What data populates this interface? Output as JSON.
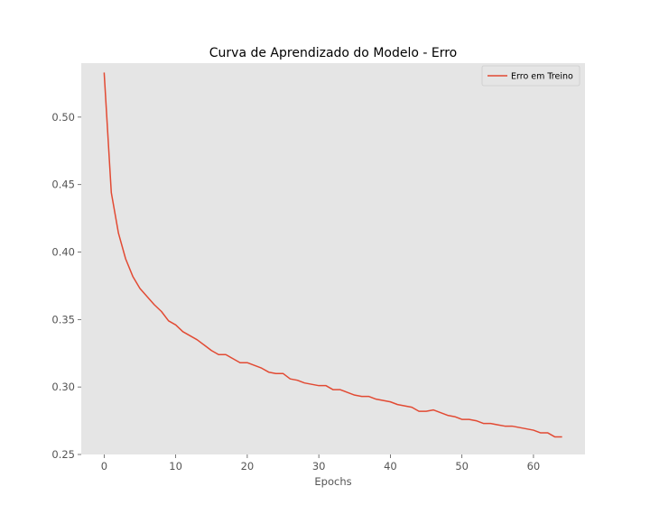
{
  "chart_data": {
    "type": "line",
    "title": "Curva de Aprendizado do Modelo - Erro",
    "xlabel": "Epochs",
    "ylabel": "",
    "xlim": [
      -3.2,
      67.2
    ],
    "ylim": [
      0.25,
      0.54
    ],
    "xticks": [
      0,
      10,
      20,
      30,
      40,
      50,
      60
    ],
    "xtick_labels": [
      "0",
      "10",
      "20",
      "30",
      "40",
      "50",
      "60"
    ],
    "yticks": [
      0.25,
      0.3,
      0.35,
      0.4,
      0.45,
      0.5
    ],
    "ytick_labels": [
      "0.25",
      "0.30",
      "0.35",
      "0.40",
      "0.45",
      "0.50"
    ],
    "grid": false,
    "legend": {
      "position": "top-right"
    },
    "colors": {
      "plot_background": "#e5e5e5",
      "series": "#e24a33",
      "tick_text": "#555555",
      "tick_mark": "#555555",
      "legend_border": "#cccccc"
    },
    "x": [
      0,
      1,
      2,
      3,
      4,
      5,
      6,
      7,
      8,
      9,
      10,
      11,
      12,
      13,
      14,
      15,
      16,
      17,
      18,
      19,
      20,
      21,
      22,
      23,
      24,
      25,
      26,
      27,
      28,
      29,
      30,
      31,
      32,
      33,
      34,
      35,
      36,
      37,
      38,
      39,
      40,
      41,
      42,
      43,
      44,
      45,
      46,
      47,
      48,
      49,
      50,
      51,
      52,
      53,
      54,
      55,
      56,
      57,
      58,
      59,
      60,
      61,
      62,
      63,
      64
    ],
    "series": [
      {
        "name": "Erro em Treino",
        "values": [
          0.533,
          0.444,
          0.414,
          0.395,
          0.382,
          0.373,
          0.367,
          0.361,
          0.356,
          0.349,
          0.346,
          0.341,
          0.338,
          0.335,
          0.331,
          0.327,
          0.324,
          0.324,
          0.321,
          0.318,
          0.318,
          0.316,
          0.314,
          0.311,
          0.31,
          0.31,
          0.306,
          0.305,
          0.303,
          0.302,
          0.301,
          0.301,
          0.298,
          0.298,
          0.296,
          0.294,
          0.293,
          0.293,
          0.291,
          0.29,
          0.289,
          0.287,
          0.286,
          0.285,
          0.282,
          0.282,
          0.283,
          0.281,
          0.279,
          0.278,
          0.276,
          0.276,
          0.275,
          0.273,
          0.273,
          0.272,
          0.271,
          0.271,
          0.27,
          0.269,
          0.268,
          0.266,
          0.266,
          0.263,
          0.263
        ]
      }
    ]
  }
}
